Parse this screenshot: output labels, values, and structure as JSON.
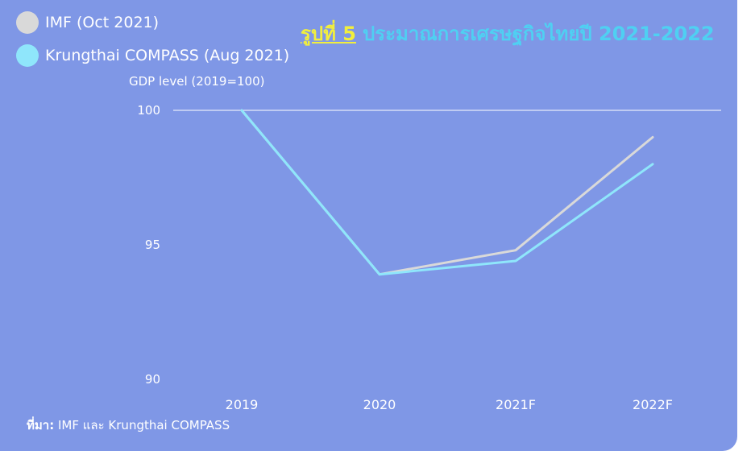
{
  "title": {
    "figure_label": "รูปที่ 5",
    "text": "ประมาณการเศรษฐกิจไทยปี 2021-2022"
  },
  "legend": [
    {
      "name": "IMF (Oct 2021)",
      "color": "#d9d9d9"
    },
    {
      "name": "Krungthai COMPASS (Aug 2021)",
      "color": "#8fe6fb"
    }
  ],
  "source": {
    "label": "ที่มา:",
    "text": "IMF และ Krungthai COMPASS"
  },
  "colors": {
    "background": "#7f97e6",
    "text": "#ffffff",
    "title_accent": "#f2ef3c",
    "title_main": "#4fd0f2"
  },
  "chart_data": {
    "type": "line",
    "ylabel": "GDP level (2019=100)",
    "x": [
      "2019",
      "2020",
      "2021F",
      "2022F"
    ],
    "ylim": [
      90,
      100
    ],
    "yticks": [
      90,
      95,
      100
    ],
    "grid": false,
    "reference_line": 100,
    "legend_position": "top-left",
    "series": [
      {
        "name": "IMF (Oct 2021)",
        "values": [
          100,
          93.9,
          94.8,
          99.0
        ],
        "color": "#d9d9d9"
      },
      {
        "name": "Krungthai COMPASS (Aug 2021)",
        "values": [
          100,
          93.9,
          94.4,
          98.0
        ],
        "color": "#8fe6fb"
      }
    ]
  }
}
